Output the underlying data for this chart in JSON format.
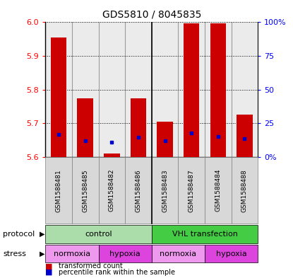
{
  "title": "GDS5810 / 8045835",
  "samples": [
    "GSM1588481",
    "GSM1588485",
    "GSM1588482",
    "GSM1588486",
    "GSM1588483",
    "GSM1588487",
    "GSM1588484",
    "GSM1588488"
  ],
  "bar_tops": [
    5.955,
    5.775,
    5.61,
    5.775,
    5.705,
    5.997,
    5.997,
    5.725
  ],
  "bar_bottom": 5.6,
  "blue_y": [
    5.668,
    5.648,
    5.645,
    5.658,
    5.648,
    5.672,
    5.66,
    5.655
  ],
  "ylim": [
    5.6,
    6.0
  ],
  "yticks_left": [
    5.6,
    5.7,
    5.8,
    5.9,
    6.0
  ],
  "yticks_right_pos": [
    5.6,
    5.7,
    5.8,
    5.9,
    6.0
  ],
  "right_axis_labels": [
    "0%",
    "25",
    "50",
    "75",
    "100%"
  ],
  "bar_color": "#cc0000",
  "blue_color": "#0000cc",
  "protocol_groups": [
    {
      "label": "control",
      "start": 0,
      "end": 4,
      "color": "#aaddaa"
    },
    {
      "label": "VHL transfection",
      "start": 4,
      "end": 8,
      "color": "#44cc44"
    }
  ],
  "stress_groups": [
    {
      "label": "normoxia",
      "start": 0,
      "end": 2,
      "color": "#ee99ee"
    },
    {
      "label": "hypoxia",
      "start": 2,
      "end": 4,
      "color": "#dd44dd"
    },
    {
      "label": "normoxia",
      "start": 4,
      "end": 6,
      "color": "#ee99ee"
    },
    {
      "label": "hypoxia",
      "start": 6,
      "end": 8,
      "color": "#dd44dd"
    }
  ],
  "legend_red_label": "transformed count",
  "legend_blue_label": "percentile rank within the sample"
}
